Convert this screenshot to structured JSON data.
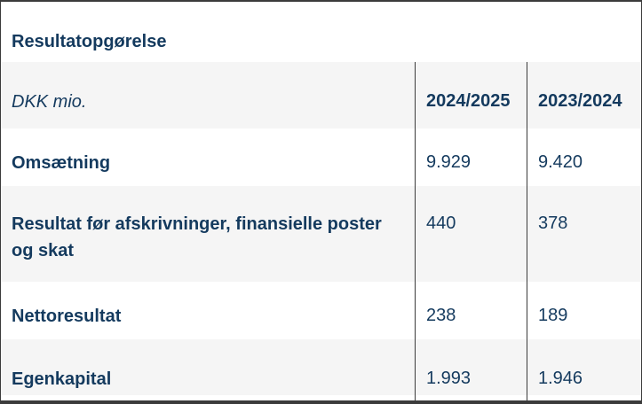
{
  "table": {
    "title": "Resultatopgørelse",
    "unit_label": "DKK mio.",
    "columns": [
      "2024/2025",
      "2023/2024"
    ],
    "rows": [
      {
        "label": "Omsætning",
        "values": [
          "9.929",
          "9.420"
        ]
      },
      {
        "label": "Resultat før afskrivninger, finansielle poster og skat",
        "values": [
          "440",
          "378"
        ]
      },
      {
        "label": "Nettoresultat",
        "values": [
          "238",
          "189"
        ]
      },
      {
        "label": "Egenkapital",
        "values": [
          "1.993",
          "1.946"
        ]
      }
    ],
    "colors": {
      "text": "#143a5e",
      "alt_row_background": "#f5f5f5",
      "border": "#3b3b3b",
      "background": "#ffffff"
    }
  }
}
